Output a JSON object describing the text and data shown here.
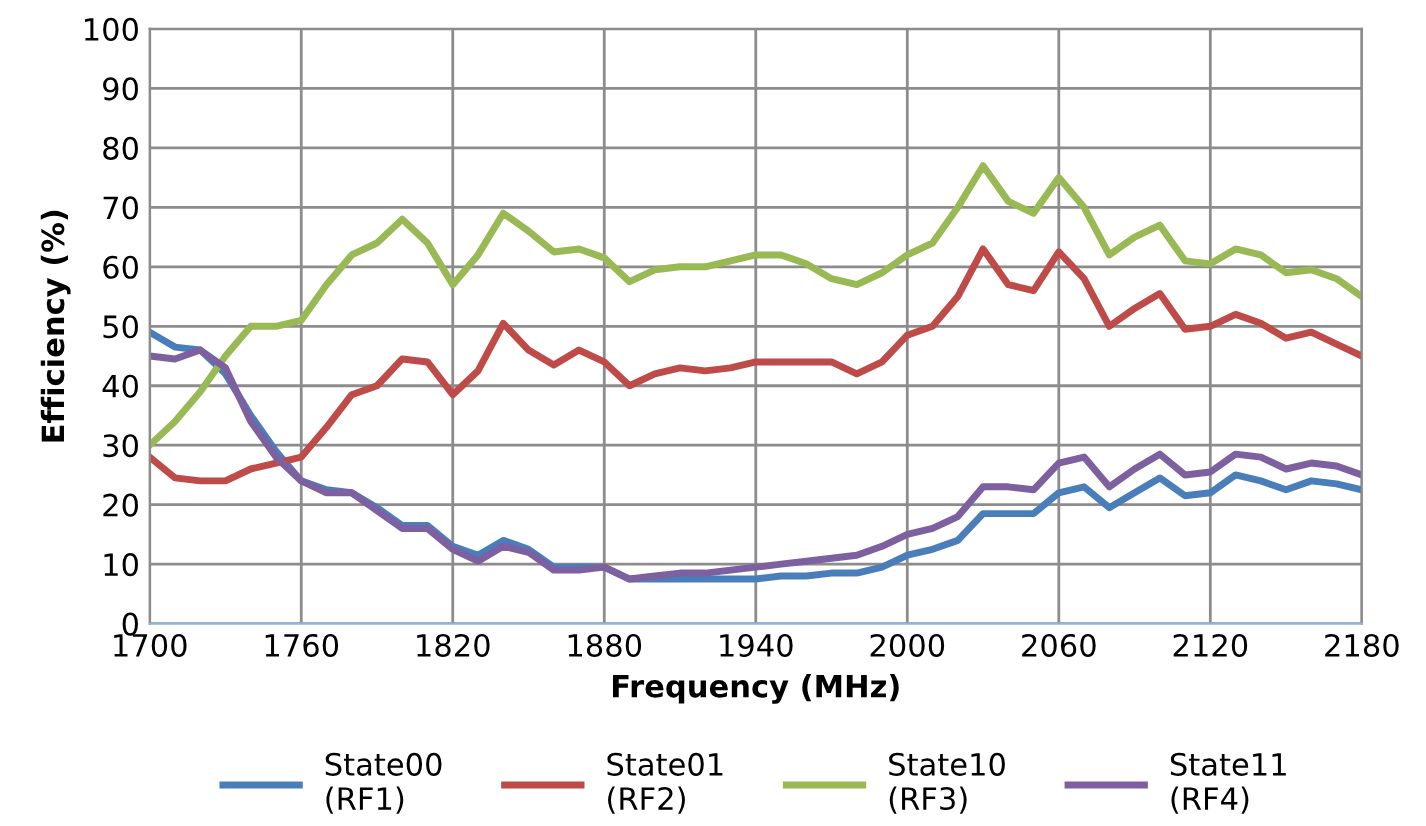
{
  "chart_data": {
    "type": "line",
    "xlabel": "Frequency (MHz)",
    "ylabel": "Efficiency (%)",
    "x": [
      1700,
      1710,
      1720,
      1730,
      1740,
      1750,
      1760,
      1770,
      1780,
      1790,
      1800,
      1810,
      1820,
      1830,
      1840,
      1850,
      1860,
      1870,
      1880,
      1890,
      1900,
      1910,
      1920,
      1930,
      1940,
      1950,
      1960,
      1970,
      1980,
      1990,
      2000,
      2010,
      2020,
      2030,
      2040,
      2050,
      2060,
      2070,
      2080,
      2090,
      2100,
      2110,
      2120,
      2130,
      2140,
      2150,
      2160,
      2170,
      2180
    ],
    "series": [
      {
        "name": "State00\n(RF1)",
        "color": "#4a7ebb",
        "values": [
          49,
          46.5,
          46,
          42,
          35,
          29,
          24,
          22.5,
          22,
          19.5,
          16.5,
          16.5,
          13,
          11.5,
          14,
          12.5,
          9.5,
          9.5,
          9.5,
          7.5,
          7.5,
          7.5,
          7.5,
          7.5,
          7.5,
          8,
          8,
          8.5,
          8.5,
          9.5,
          11.5,
          12.5,
          14,
          18.5,
          18.5,
          18.5,
          22,
          23,
          19.5,
          22,
          24.5,
          21.5,
          22,
          25,
          24,
          22.5,
          24,
          23.5,
          22.5
        ]
      },
      {
        "name": "State01\n(RF2)",
        "color": "#be4b48",
        "values": [
          28,
          24.5,
          24,
          24,
          26,
          27,
          28,
          33,
          38.5,
          40,
          44.5,
          44,
          38.5,
          42.5,
          50.5,
          46,
          43.5,
          46,
          44,
          40,
          42,
          43,
          42.5,
          43,
          44,
          44,
          44,
          44,
          42,
          44,
          48.5,
          50,
          55,
          63,
          57,
          56,
          62.5,
          58,
          50,
          53,
          55.5,
          49.5,
          50,
          52,
          50.5,
          48,
          49,
          47,
          45
        ]
      },
      {
        "name": "State10\n(RF3)",
        "color": "#98b954",
        "values": [
          30,
          34,
          39,
          45,
          50,
          50,
          51,
          57,
          62,
          64,
          68,
          64,
          57,
          62,
          69,
          66,
          62.5,
          63,
          61.5,
          57.5,
          59.5,
          60,
          60,
          61,
          62,
          62,
          60.5,
          58,
          57,
          59,
          62,
          64,
          70,
          77,
          71,
          69,
          75,
          70,
          62,
          65,
          67,
          61,
          60.5,
          63,
          62,
          59,
          59.5,
          58,
          55
        ]
      },
      {
        "name": "State11\n(RF4)",
        "color": "#7d60a0",
        "values": [
          45,
          44.5,
          46,
          43,
          34,
          28,
          24,
          22,
          22,
          19,
          16,
          16,
          12.5,
          10.5,
          13,
          12,
          9,
          9,
          9.5,
          7.5,
          8,
          8.5,
          8.5,
          9,
          9.5,
          10,
          10.5,
          11,
          11.5,
          13,
          15,
          16,
          18,
          23,
          23,
          22.5,
          27,
          28,
          23,
          26,
          28.5,
          25,
          25.5,
          28.5,
          28,
          26,
          27,
          26.5,
          25
        ]
      }
    ],
    "xlim": [
      1700,
      2180
    ],
    "xticks": [
      1700,
      1760,
      1820,
      1880,
      1940,
      2000,
      2060,
      2120,
      2180
    ],
    "ylim": [
      0,
      100
    ],
    "yticks": [
      0,
      10,
      20,
      30,
      40,
      50,
      60,
      70,
      80,
      90,
      100
    ],
    "grid": true,
    "legend": "bottom",
    "marker": "none",
    "line_style": "solid"
  }
}
